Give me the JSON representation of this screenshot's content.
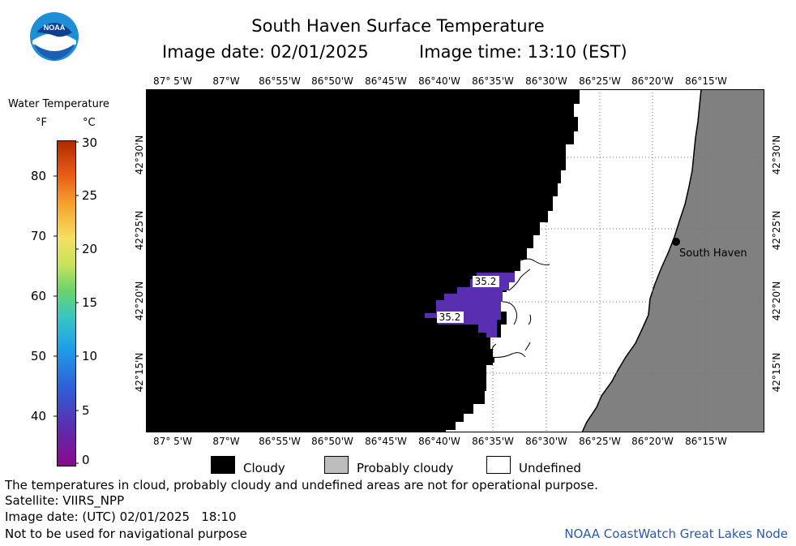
{
  "header": {
    "title": "South Haven Surface Temperature",
    "date_line": "Image date: 02/01/2025",
    "time_line": "Image time: 13:10 (EST)"
  },
  "logo": {
    "text": "NOAA"
  },
  "legend": {
    "title": "Water Temperature",
    "unit_f": "°F",
    "unit_c": "°C",
    "f_ticks": [
      "80",
      "70",
      "60",
      "50",
      "40"
    ],
    "c_ticks": [
      "30",
      "25",
      "20",
      "15",
      "10",
      "5",
      "0"
    ]
  },
  "map": {
    "lon_labels": [
      "87° 5'W",
      "87°W",
      "86°55'W",
      "86°50'W",
      "86°45'W",
      "86°40'W",
      "86°35'W",
      "86°30'W",
      "86°25'W",
      "86°20'W",
      "86°15'W"
    ],
    "lat_labels": [
      "42°30'N",
      "42°25'N",
      "42°20'N",
      "42°15'N"
    ],
    "city": "South Haven",
    "temp_labels": [
      "35.2",
      "35.2"
    ],
    "colors": {
      "cloudy": "#000000",
      "land": "#808080",
      "undefined": "#ffffff",
      "water_cold": "#5a2eb0"
    }
  },
  "key": {
    "cloudy": "Cloudy",
    "probably_cloudy": "Probably cloudy",
    "undefined": "Undefined"
  },
  "footer": {
    "line1": "The temperatures in cloud, probably cloudy and undefined areas are not for operational purpose.",
    "line2": "Satellite: VIIRS_NPP",
    "line3": "Image date: (UTC) 02/01/2025   18:10",
    "line4": "Not to be used for navigational purpose",
    "credit": "NOAA CoastWatch Great Lakes Node"
  }
}
